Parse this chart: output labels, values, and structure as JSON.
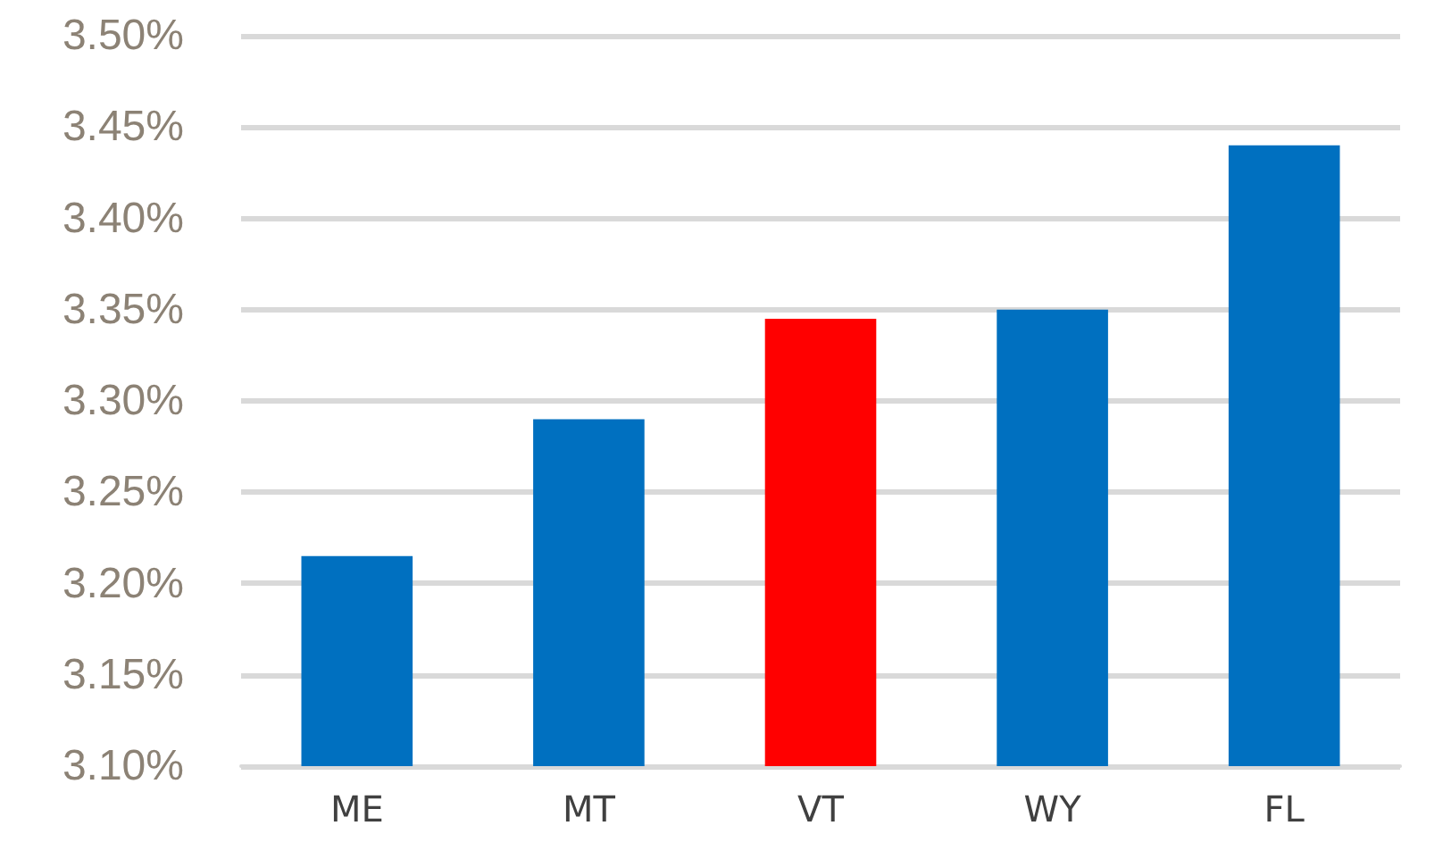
{
  "chart_data": {
    "type": "bar",
    "categories": [
      "ME",
      "MT",
      "VT",
      "WY",
      "FL"
    ],
    "values": [
      3.215,
      3.29,
      3.345,
      3.35,
      3.44
    ],
    "colors": [
      "#0070c0",
      "#0070c0",
      "#ff0000",
      "#0070c0",
      "#0070c0"
    ],
    "ylim": [
      3.1,
      3.5
    ],
    "yticks": [
      {
        "value": 3.1,
        "label": "3.10%"
      },
      {
        "value": 3.15,
        "label": "3.15%"
      },
      {
        "value": 3.2,
        "label": "3.20%"
      },
      {
        "value": 3.25,
        "label": "3.25%"
      },
      {
        "value": 3.3,
        "label": "3.30%"
      },
      {
        "value": 3.35,
        "label": "3.35%"
      },
      {
        "value": 3.4,
        "label": "3.40%"
      },
      {
        "value": 3.45,
        "label": "3.45%"
      },
      {
        "value": 3.5,
        "label": "3.50%"
      }
    ],
    "grid": "y"
  }
}
